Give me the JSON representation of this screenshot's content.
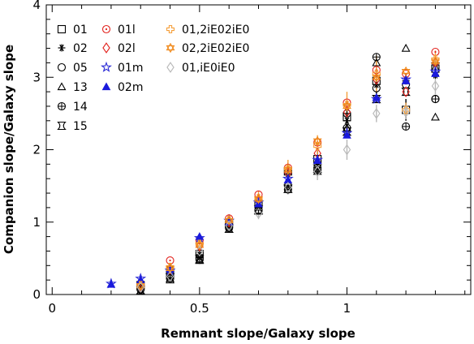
{
  "chart_data": {
    "type": "scatter",
    "xlabel": "Remnant slope/Galaxy slope",
    "ylabel": "Companion slope/Galaxy slope",
    "xlim": [
      -0.02,
      1.42
    ],
    "ylim": [
      0,
      4
    ],
    "x_ticks": [
      0,
      0.5,
      1
    ],
    "x_tick_labels": [
      "0",
      "0.5",
      "1"
    ],
    "y_ticks": [
      0,
      1,
      2,
      3,
      4
    ],
    "y_tick_labels": [
      "0",
      "1",
      "2",
      "3",
      "4"
    ],
    "grid": false,
    "legend_position": "top-left (three columns)",
    "series": [
      {
        "name": "01",
        "marker": "square",
        "color": "#000000",
        "points": [
          [
            0.3,
            0.13
          ],
          [
            0.4,
            0.33
          ],
          [
            0.5,
            0.56
          ],
          [
            0.6,
            0.99
          ],
          [
            0.7,
            1.25
          ],
          [
            0.8,
            1.7
          ],
          [
            0.9,
            1.87
          ],
          [
            1.0,
            2.45
          ],
          [
            1.1,
            2.95
          ],
          [
            1.2,
            2.55
          ],
          [
            1.3,
            3.12
          ]
        ],
        "err": [
          0.05,
          0.06,
          0.07,
          0.08,
          0.1,
          0.12,
          0.15,
          0.18,
          0.3,
          0.15,
          0.12
        ]
      },
      {
        "name": "02",
        "marker": "asterisk",
        "color": "#000000",
        "points": [
          [
            0.3,
            0.1
          ],
          [
            0.4,
            0.3
          ],
          [
            0.5,
            0.55
          ],
          [
            0.6,
            0.97
          ],
          [
            0.7,
            1.2
          ],
          [
            0.8,
            1.67
          ],
          [
            0.9,
            1.83
          ],
          [
            1.0,
            2.4
          ],
          [
            1.1,
            2.9
          ],
          [
            1.2,
            2.95
          ],
          [
            1.3,
            3.03
          ]
        ]
      },
      {
        "name": "05",
        "marker": "circle",
        "color": "#000000",
        "points": [
          [
            0.3,
            0.08
          ],
          [
            0.4,
            0.25
          ],
          [
            0.5,
            0.5
          ],
          [
            0.6,
            0.93
          ],
          [
            0.7,
            1.17
          ],
          [
            0.8,
            1.5
          ],
          [
            0.9,
            1.75
          ],
          [
            1.0,
            2.3
          ],
          [
            1.1,
            2.85
          ],
          [
            1.2,
            2.9
          ],
          [
            1.3,
            2.7
          ]
        ]
      },
      {
        "name": "13",
        "marker": "triangle",
        "color": "#000000",
        "points": [
          [
            0.3,
            0.05
          ],
          [
            0.4,
            0.2
          ],
          [
            0.5,
            0.47
          ],
          [
            0.6,
            0.9
          ],
          [
            0.7,
            1.15
          ],
          [
            0.8,
            1.45
          ],
          [
            0.9,
            1.7
          ],
          [
            1.0,
            2.3
          ],
          [
            1.1,
            3.2
          ],
          [
            1.2,
            3.4
          ],
          [
            1.3,
            2.45
          ]
        ]
      },
      {
        "name": "14",
        "marker": "circle-plus",
        "color": "#000000",
        "points": [
          [
            0.3,
            0.07
          ],
          [
            0.4,
            0.22
          ],
          [
            0.5,
            0.48
          ],
          [
            0.6,
            0.92
          ],
          [
            0.7,
            1.16
          ],
          [
            0.8,
            1.45
          ],
          [
            0.9,
            1.72
          ],
          [
            1.0,
            2.5
          ],
          [
            1.1,
            3.28
          ],
          [
            1.2,
            2.32
          ],
          [
            1.3,
            2.7
          ]
        ]
      },
      {
        "name": "15",
        "marker": "hourglass",
        "color": "#000000",
        "points": [
          [
            0.3,
            0.06
          ],
          [
            0.4,
            0.23
          ],
          [
            0.5,
            0.49
          ],
          [
            0.6,
            0.91
          ],
          [
            0.7,
            1.17
          ],
          [
            0.8,
            1.46
          ],
          [
            0.9,
            1.74
          ],
          [
            1.0,
            2.25
          ],
          [
            1.1,
            2.7
          ],
          [
            1.2,
            2.8
          ],
          [
            1.3,
            3.15
          ]
        ]
      },
      {
        "name": "01l",
        "marker": "circle-dot",
        "color": "#e2211c",
        "points": [
          [
            0.3,
            0.12
          ],
          [
            0.4,
            0.47
          ],
          [
            0.5,
            0.75
          ],
          [
            0.6,
            1.05
          ],
          [
            0.7,
            1.38
          ],
          [
            0.8,
            1.75
          ],
          [
            0.9,
            2.1
          ],
          [
            1.0,
            2.65
          ],
          [
            1.1,
            3.1
          ],
          [
            1.2,
            3.05
          ],
          [
            1.3,
            3.35
          ]
        ]
      },
      {
        "name": "02l",
        "marker": "diamond",
        "color": "#e2211c",
        "points": [
          [
            0.3,
            0.1
          ],
          [
            0.4,
            0.35
          ],
          [
            0.5,
            0.67
          ],
          [
            0.6,
            1.0
          ],
          [
            0.7,
            1.3
          ],
          [
            0.8,
            1.68
          ],
          [
            0.9,
            1.95
          ],
          [
            1.0,
            2.52
          ],
          [
            1.1,
            2.97
          ],
          [
            1.2,
            2.8
          ],
          [
            1.3,
            3.2
          ]
        ]
      },
      {
        "name": "01m",
        "marker": "star-open",
        "color": "#2a2ad6",
        "points": [
          [
            0.2,
            0.15
          ],
          [
            0.3,
            0.22
          ],
          [
            0.4,
            0.33
          ],
          [
            0.5,
            0.78
          ],
          [
            0.6,
            1.02
          ],
          [
            0.7,
            1.27
          ],
          [
            0.8,
            1.6
          ],
          [
            0.9,
            1.86
          ],
          [
            1.0,
            2.23
          ],
          [
            1.1,
            2.7
          ],
          [
            1.2,
            2.97
          ],
          [
            1.3,
            3.08
          ]
        ]
      },
      {
        "name": "02m",
        "marker": "triangle-filled",
        "color": "#1a1adc",
        "points": [
          [
            0.2,
            0.14
          ],
          [
            0.3,
            0.2
          ],
          [
            0.4,
            0.35
          ],
          [
            0.5,
            0.8
          ],
          [
            0.6,
            1.0
          ],
          [
            0.7,
            1.25
          ],
          [
            0.8,
            1.58
          ],
          [
            0.9,
            1.85
          ],
          [
            1.0,
            2.2
          ],
          [
            1.1,
            2.72
          ],
          [
            1.2,
            2.95
          ],
          [
            1.3,
            3.05
          ]
        ]
      },
      {
        "name": "01,2iE02iE0",
        "marker": "plus-open",
        "color": "#f5a03c",
        "points": [
          [
            0.3,
            0.13
          ],
          [
            0.4,
            0.38
          ],
          [
            0.5,
            0.7
          ],
          [
            0.6,
            1.03
          ],
          [
            0.7,
            1.33
          ],
          [
            0.8,
            1.74
          ],
          [
            0.9,
            2.05
          ],
          [
            1.0,
            2.62
          ],
          [
            1.1,
            3.05
          ],
          [
            1.2,
            2.55
          ],
          [
            1.3,
            3.25
          ]
        ],
        "err": [
          0.05,
          0.06,
          0.08,
          0.08,
          0.1,
          0.12,
          0.15,
          0.18,
          0.25,
          0.1,
          0.12
        ]
      },
      {
        "name": "02,2iE02iE0",
        "marker": "star-of-david",
        "color": "#f08a1c",
        "points": [
          [
            0.3,
            0.12
          ],
          [
            0.4,
            0.36
          ],
          [
            0.5,
            0.68
          ],
          [
            0.6,
            1.02
          ],
          [
            0.7,
            1.32
          ],
          [
            0.8,
            1.72
          ],
          [
            0.9,
            2.12
          ],
          [
            1.0,
            2.6
          ],
          [
            1.1,
            3.0
          ],
          [
            1.2,
            3.08
          ],
          [
            1.3,
            3.22
          ]
        ]
      },
      {
        "name": "01,iE0iE0",
        "marker": "diamond",
        "color": "#b8b8b8",
        "points": [
          [
            0.3,
            0.1
          ],
          [
            0.4,
            0.25
          ],
          [
            0.5,
            0.6
          ],
          [
            0.6,
            0.95
          ],
          [
            0.7,
            1.12
          ],
          [
            0.8,
            1.48
          ],
          [
            0.9,
            1.7
          ],
          [
            1.0,
            2.0
          ],
          [
            1.1,
            2.5
          ],
          [
            1.2,
            2.52
          ],
          [
            1.3,
            2.88
          ]
        ],
        "err": [
          0.04,
          0.05,
          0.06,
          0.07,
          0.08,
          0.1,
          0.12,
          0.14,
          0.12,
          0.1,
          0.12
        ]
      }
    ],
    "legend_columns": [
      [
        "01",
        "02",
        "05",
        "13",
        "14",
        "15"
      ],
      [
        "01l",
        "02l",
        "01m",
        "02m"
      ],
      [
        "01,2iE02iE0",
        "02,2iE02iE0",
        "01,iE0iE0"
      ]
    ]
  }
}
